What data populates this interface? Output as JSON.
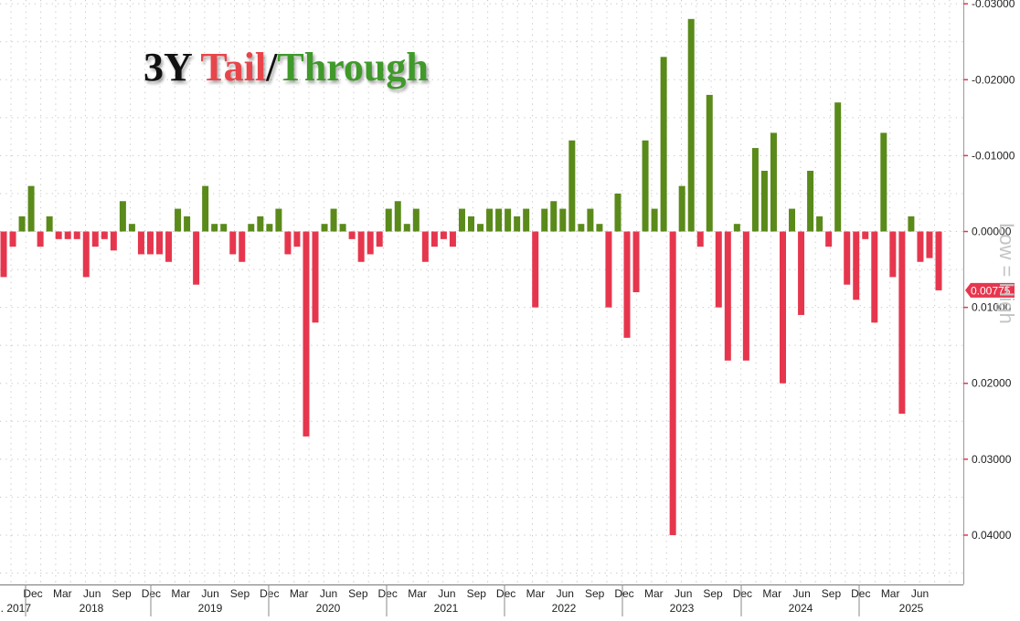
{
  "chart_data": {
    "type": "bar",
    "title_parts": [
      {
        "text": "3Y ",
        "color": "#111111"
      },
      {
        "text": "Tail",
        "color": "#e8454b"
      },
      {
        "text": "/",
        "color": "#111111"
      },
      {
        "text": "Through",
        "color": "#3f9a2a"
      }
    ],
    "side_label": "Low = High",
    "last_value_label": "0.00775",
    "y_axis": {
      "inverted": true,
      "ylim": [
        -0.0305,
        0.0465
      ],
      "ticks": [
        -0.03,
        -0.02,
        -0.01,
        0.0,
        0.01,
        0.02,
        0.03,
        0.04
      ],
      "tick_labels": [
        "-0.03000",
        "-0.02000",
        "-0.01000",
        "0.00000",
        "0.01000",
        "0.02000",
        "0.03000",
        "0.04000"
      ]
    },
    "x_axis": {
      "month_labels": [
        "Dec",
        "Mar",
        "Jun",
        "Sep",
        "Dec",
        "Mar",
        "Jun",
        "Sep",
        "Dec",
        "Mar",
        "Jun",
        "Sep",
        "Dec",
        "Mar",
        "Jun",
        "Sep",
        "Dec",
        "Mar",
        "Jun",
        "Sep",
        "Dec",
        "Mar",
        "Jun",
        "Sep",
        "Dec",
        "Mar",
        "Jun",
        "Sep",
        "Dec",
        "Mar",
        "Jun"
      ],
      "year_labels": [
        "... 2017",
        "2018",
        "2019",
        "2020",
        "2021",
        "2022",
        "2023",
        "2024",
        "2025"
      ]
    },
    "grid": true,
    "colors": {
      "tail": "#e6364d",
      "through": "#5a8a1a",
      "axis": "#e6364d",
      "grid": "#c8c8c8"
    },
    "values": [
      0.006,
      0.002,
      -0.002,
      -0.006,
      0.002,
      -0.002,
      0.001,
      0.001,
      0.001,
      0.006,
      0.002,
      0.001,
      0.0025,
      -0.004,
      -0.001,
      0.003,
      0.003,
      0.003,
      0.004,
      -0.003,
      -0.002,
      0.007,
      -0.006,
      -0.001,
      -0.001,
      0.003,
      0.004,
      -0.001,
      -0.002,
      -0.001,
      -0.003,
      0.003,
      0.002,
      0.027,
      0.012,
      -0.001,
      -0.003,
      -0.001,
      0.001,
      0.004,
      0.003,
      0.002,
      -0.003,
      -0.004,
      -0.001,
      -0.003,
      0.004,
      0.002,
      0.001,
      0.002,
      -0.003,
      -0.002,
      -0.001,
      -0.003,
      -0.003,
      -0.003,
      -0.002,
      -0.003,
      0.01,
      -0.003,
      -0.004,
      -0.003,
      -0.012,
      -0.001,
      -0.003,
      -0.001,
      0.01,
      -0.005,
      0.014,
      0.008,
      -0.012,
      -0.003,
      -0.023,
      0.04,
      -0.006,
      -0.028,
      0.002,
      -0.018,
      0.01,
      0.017,
      -0.001,
      0.017,
      -0.011,
      -0.008,
      -0.013,
      0.02,
      -0.003,
      0.011,
      -0.008,
      -0.002,
      0.002,
      -0.017,
      0.007,
      0.009,
      0.001,
      0.012,
      -0.013,
      0.006,
      0.024,
      -0.002,
      0.004,
      0.0035,
      0.00775
    ]
  }
}
